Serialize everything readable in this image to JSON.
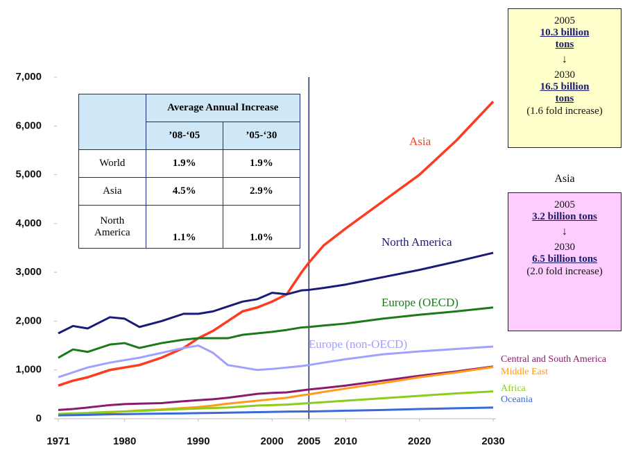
{
  "chart_data": {
    "type": "line",
    "x": [
      1971,
      1973,
      1975,
      1978,
      1980,
      1982,
      1985,
      1988,
      1990,
      1992,
      1994,
      1996,
      1998,
      2000,
      2002,
      2004,
      2005,
      2007,
      2010,
      2015,
      2020,
      2025,
      2030
    ],
    "series": [
      {
        "name": "Asia",
        "color": "#ff3a1e",
        "values": [
          680,
          780,
          850,
          1000,
          1050,
          1100,
          1250,
          1450,
          1650,
          1800,
          2000,
          2200,
          2280,
          2400,
          2550,
          3000,
          3200,
          3550,
          3900,
          4450,
          5000,
          5700,
          6500
        ]
      },
      {
        "name": "North America",
        "color": "#1a1a7a",
        "values": [
          1750,
          1900,
          1850,
          2080,
          2050,
          1880,
          2000,
          2150,
          2150,
          2200,
          2300,
          2400,
          2450,
          2580,
          2550,
          2630,
          2640,
          2680,
          2750,
          2900,
          3050,
          3220,
          3400
        ]
      },
      {
        "name": "Europe (OECD)",
        "color": "#1a7a1a",
        "values": [
          1250,
          1420,
          1370,
          1520,
          1550,
          1450,
          1550,
          1620,
          1650,
          1650,
          1650,
          1720,
          1750,
          1780,
          1820,
          1870,
          1880,
          1910,
          1950,
          2050,
          2130,
          2200,
          2280
        ]
      },
      {
        "name": "Europe (non-OECD)",
        "color": "#a0a0ff",
        "values": [
          850,
          950,
          1050,
          1150,
          1200,
          1250,
          1350,
          1450,
          1500,
          1350,
          1100,
          1050,
          1000,
          1020,
          1050,
          1080,
          1100,
          1150,
          1220,
          1320,
          1380,
          1430,
          1480
        ]
      },
      {
        "name": "Central and South America",
        "color": "#8b1a6b",
        "values": [
          180,
          200,
          230,
          280,
          300,
          310,
          320,
          360,
          380,
          400,
          430,
          470,
          510,
          530,
          540,
          580,
          600,
          630,
          680,
          780,
          880,
          970,
          1070
        ]
      },
      {
        "name": "Middle East",
        "color": "#ff9a1a",
        "values": [
          70,
          80,
          100,
          130,
          150,
          170,
          190,
          220,
          240,
          270,
          310,
          340,
          370,
          400,
          430,
          480,
          500,
          550,
          620,
          730,
          850,
          950,
          1060
        ]
      },
      {
        "name": "Africa",
        "color": "#8ccc1a",
        "values": [
          100,
          110,
          120,
          140,
          150,
          160,
          180,
          200,
          210,
          220,
          230,
          250,
          270,
          280,
          290,
          310,
          320,
          340,
          370,
          420,
          470,
          520,
          560
        ]
      },
      {
        "name": "Oceania",
        "color": "#3a6ad8",
        "values": [
          70,
          75,
          80,
          90,
          95,
          100,
          105,
          110,
          115,
          120,
          125,
          130,
          135,
          140,
          145,
          150,
          150,
          155,
          165,
          180,
          200,
          215,
          230
        ]
      }
    ],
    "xlim": [
      1971,
      2030
    ],
    "xticks": [
      1971,
      1980,
      1990,
      2000,
      2005,
      2010,
      2020,
      2030
    ],
    "ylim": [
      0,
      7000
    ],
    "yticks": [
      0,
      {
        "value": 1000,
        "label": "1,000"
      },
      {
        "value": 2000,
        "label": "2,000"
      },
      {
        "value": 3000,
        "label": "3,000"
      },
      {
        "value": 4000,
        "label": "4,000"
      },
      {
        "value": 5000,
        "label": "5,000"
      },
      {
        "value": 6000,
        "label": "6,000"
      },
      {
        "value": 7000,
        "label": "7,000"
      }
    ],
    "vline": 2005,
    "table": {
      "header": "Average Annual Increase",
      "columns": [
        "’08-‘05",
        "’05-‘30"
      ],
      "rows": [
        [
          "World",
          "1.9%",
          "1.9%"
        ],
        [
          "Asia",
          "4.5%",
          "2.9%"
        ],
        [
          "North America",
          "1.1%",
          "1.0%"
        ]
      ]
    },
    "boxes": [
      {
        "year1": "2005",
        "value1": "10.3 billion tons",
        "year2": "2030",
        "value2": "16.5 billion tons",
        "note": "(1.6 fold increase)"
      },
      {
        "title": "Asia",
        "year1": "2005",
        "value1": "3.2 billion tons",
        "year2": "2030",
        "value2": "6.5 billion tons",
        "note": "(2.0 fold increase)"
      }
    ]
  }
}
